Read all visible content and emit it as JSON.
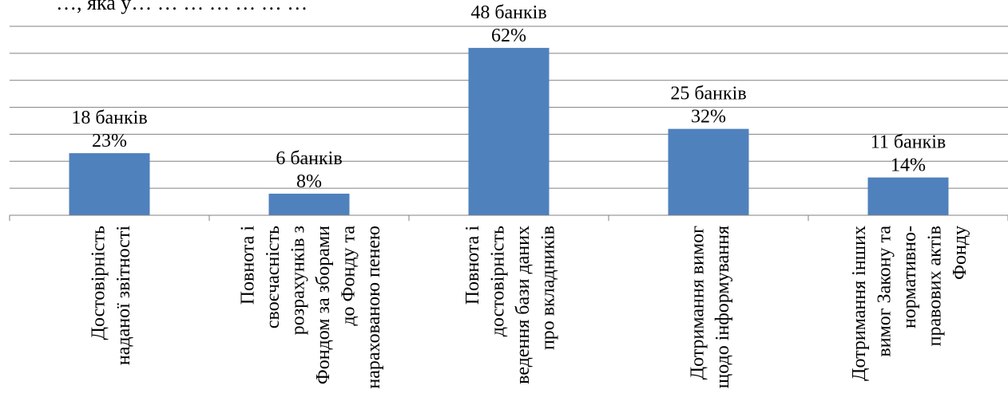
{
  "header_fragment": "…, яка у…  …  …  …  …  …  …",
  "chart_data": {
    "type": "bar",
    "categories": [
      "Достовірність наданої звітності",
      "Повнота і своєчасність розрахунків з Фондом за зборами до Фонду та нарахованою пенею",
      "Повнота і достовірність ведення бази даних про вкладників",
      "Дотримання вимог щодо інформування",
      "Дотримання інших вимог Закону та нормативно-правових актів Фонду"
    ],
    "category_lines": [
      [
        "Достовірність",
        "наданої звітності"
      ],
      [
        "Повнота і",
        "своєчасність",
        "розрахунків з",
        "Фондом за зборами",
        "до Фонду та",
        "нарахованою пенею"
      ],
      [
        "Повнота і",
        "достовірність",
        "ведення бази даних",
        "про вкладників"
      ],
      [
        "Дотримання вимог",
        "щодо інформування"
      ],
      [
        "Дотримання інших",
        "вимог Закону та",
        "нормативно-",
        "правових актів",
        "Фонду"
      ]
    ],
    "series": [
      {
        "values": [
          23,
          8,
          62,
          32,
          14
        ],
        "counts": [
          18,
          6,
          48,
          25,
          11
        ],
        "count_labels": [
          "18 банків",
          "6 банків",
          "48 банків",
          "25 банків",
          "11 банків"
        ],
        "pct_labels": [
          "23%",
          "8%",
          "62%",
          "32%",
          "14%"
        ]
      }
    ],
    "ylim": [
      0,
      70
    ],
    "grid": true,
    "legend": "none",
    "bar_color": "#4f81bd",
    "grid_color": "#808080"
  }
}
